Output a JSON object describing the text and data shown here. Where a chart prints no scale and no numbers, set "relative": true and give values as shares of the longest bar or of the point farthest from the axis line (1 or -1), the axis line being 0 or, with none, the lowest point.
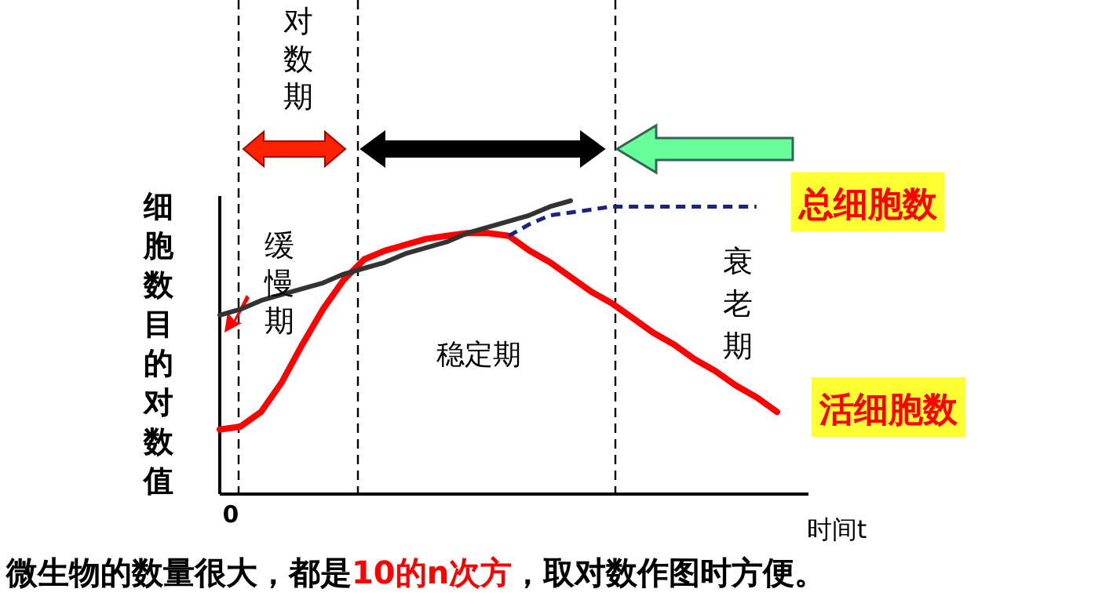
{
  "chart_data": {
    "type": "line",
    "relative": true,
    "xlabel": "时间t",
    "ylabel": "细胞数目的对数值",
    "categories": [
      null,
      null,
      null,
      null,
      null,
      null,
      null,
      null,
      null,
      null,
      null,
      null,
      null,
      null,
      null,
      null,
      null,
      null,
      null,
      null,
      null,
      null,
      null,
      null,
      null,
      null,
      null,
      null
    ],
    "annotations": [
      "对数期",
      "缓慢期",
      "稳定期",
      "衰老期",
      "微生物的数量很大，都是**10的n次方**，取对数作图时方便。",
      "0"
    ],
    "series": [
      {
        "name": "活细胞数",
        "color": "#ff0000",
        "values": [
          0.22,
          0.23,
          0.28,
          0.38,
          0.51,
          0.63,
          0.73,
          0.8,
          0.83,
          0.85,
          0.87,
          0.88,
          0.89,
          0.89,
          0.88,
          0.83,
          0.79,
          0.74,
          0.69,
          0.65,
          0.6,
          0.55,
          0.51,
          0.46,
          0.42,
          0.37,
          0.33,
          0.28
        ]
      },
      {
        "name": "总细胞数",
        "color": "#1a237e",
        "line_style": "dashed",
        "values": [
          null,
          null,
          null,
          null,
          null,
          null,
          null,
          null,
          null,
          null,
          null,
          null,
          null,
          null,
          0.88,
          0.92,
          0.95,
          0.96,
          0.97,
          0.98,
          0.98,
          0.98,
          0.98,
          0.98,
          0.98,
          0.98,
          0.98,
          null
        ]
      },
      {
        "color": "#333333",
        "values": [
          0.61,
          0.63,
          0.66,
          0.68,
          0.7,
          0.72,
          0.75,
          0.77,
          0.79,
          0.82,
          0.84,
          0.86,
          0.89,
          0.91,
          0.93,
          0.95,
          0.98,
          1.0,
          null,
          null,
          null,
          null,
          null,
          null,
          null,
          null,
          null,
          null
        ]
      }
    ]
  }
}
